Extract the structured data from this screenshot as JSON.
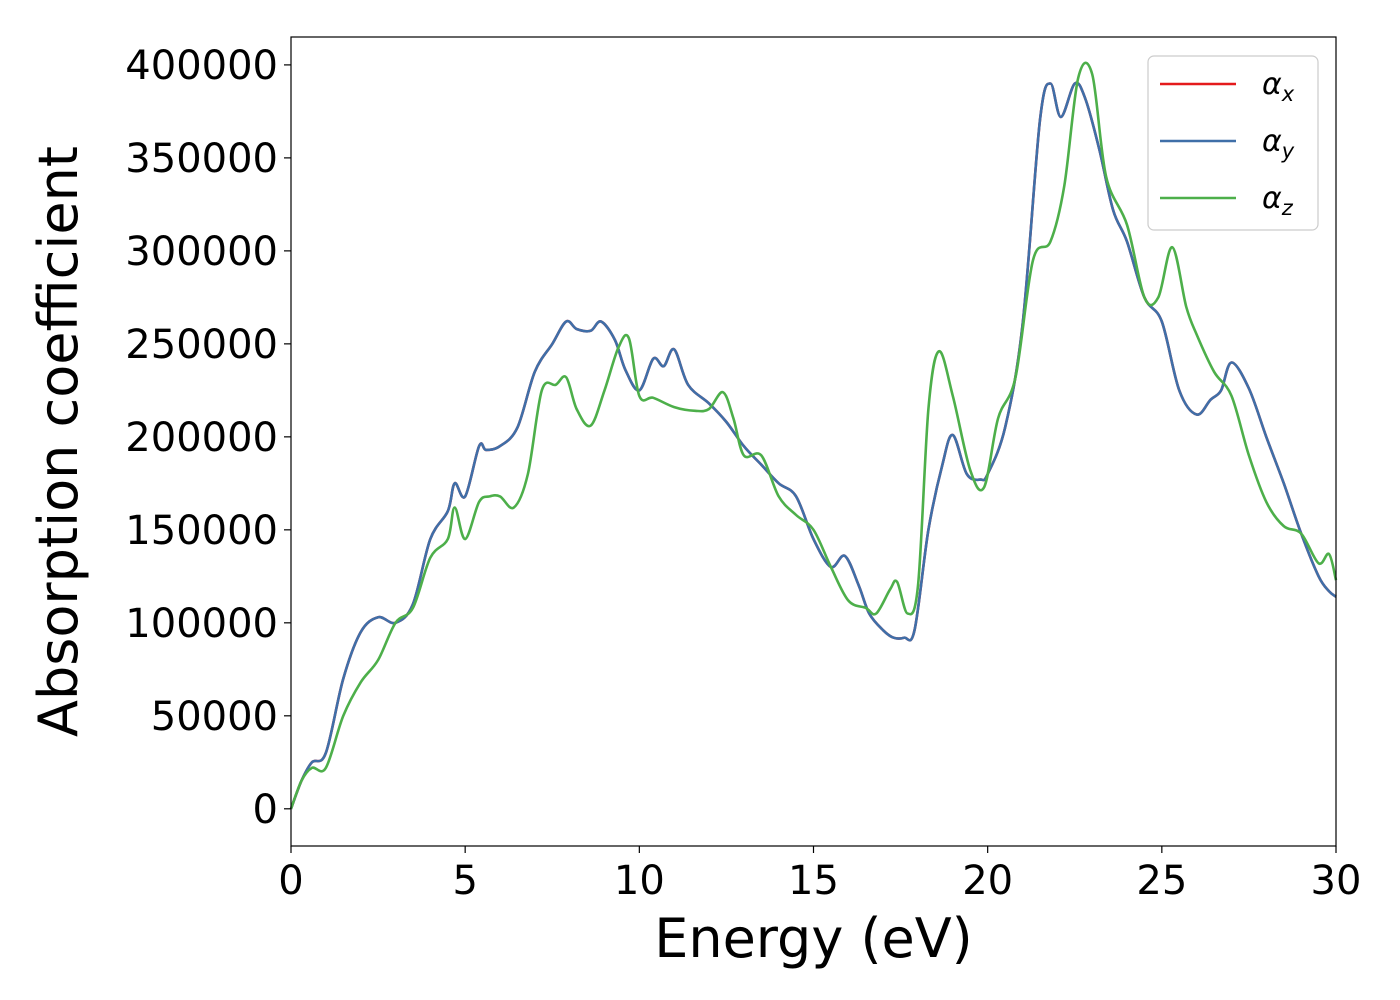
{
  "chart_data": {
    "type": "line",
    "title": "",
    "xlabel": "Energy (eV)",
    "ylabel": "Absorption coefficient",
    "xlim": [
      0,
      30
    ],
    "ylim": [
      -20000,
      415000
    ],
    "xticks": [
      0,
      5,
      10,
      15,
      20,
      25,
      30
    ],
    "yticks": [
      0,
      50000,
      100000,
      150000,
      200000,
      250000,
      300000,
      350000,
      400000
    ],
    "grid": false,
    "legend_position": "top-right",
    "series": [
      {
        "name": "αx",
        "symbol": "α",
        "subscript": "x",
        "color": "#e41a1c",
        "x": [
          0,
          0.3,
          0.6,
          1.0,
          1.5,
          2.0,
          2.5,
          3.0,
          3.5,
          4.0,
          4.5,
          4.7,
          5.0,
          5.4,
          5.6,
          6.0,
          6.5,
          7.0,
          7.5,
          7.9,
          8.2,
          8.6,
          8.9,
          9.3,
          9.6,
          10.0,
          10.4,
          10.7,
          11.0,
          11.4,
          12.0,
          12.5,
          13.0,
          13.5,
          14.0,
          14.5,
          15.0,
          15.5,
          15.9,
          16.3,
          16.6,
          17.0,
          17.3,
          17.6,
          17.9,
          18.3,
          18.7,
          19.0,
          19.4,
          19.8,
          20.0,
          20.5,
          21.0,
          21.5,
          21.8,
          22.1,
          22.5,
          22.8,
          23.2,
          23.6,
          24.0,
          24.5,
          25.0,
          25.5,
          26.0,
          26.4,
          26.7,
          27.0,
          27.5,
          28.0,
          28.5,
          29.0,
          29.5,
          29.8,
          30.0
        ],
        "values": [
          0,
          15000,
          25000,
          30000,
          70000,
          95000,
          103000,
          100000,
          110000,
          145000,
          160000,
          175000,
          168000,
          195000,
          193000,
          195000,
          205000,
          235000,
          250000,
          262000,
          258000,
          257000,
          262000,
          252000,
          236000,
          225000,
          242000,
          238000,
          247000,
          228000,
          218000,
          208000,
          195000,
          185000,
          175000,
          168000,
          145000,
          130000,
          136000,
          120000,
          105000,
          96000,
          92000,
          92000,
          96000,
          150000,
          185000,
          201000,
          180000,
          177000,
          180000,
          205000,
          260000,
          370000,
          390000,
          372000,
          390000,
          382000,
          355000,
          322000,
          305000,
          275000,
          262000,
          225000,
          212000,
          220000,
          225000,
          240000,
          226000,
          200000,
          175000,
          148000,
          125000,
          117000,
          114000
        ]
      },
      {
        "name": "αy",
        "symbol": "α",
        "subscript": "y",
        "color": "#3f6fa8",
        "x": [
          0,
          0.3,
          0.6,
          1.0,
          1.5,
          2.0,
          2.5,
          3.0,
          3.5,
          4.0,
          4.5,
          4.7,
          5.0,
          5.4,
          5.6,
          6.0,
          6.5,
          7.0,
          7.5,
          7.9,
          8.2,
          8.6,
          8.9,
          9.3,
          9.6,
          10.0,
          10.4,
          10.7,
          11.0,
          11.4,
          12.0,
          12.5,
          13.0,
          13.5,
          14.0,
          14.5,
          15.0,
          15.5,
          15.9,
          16.3,
          16.6,
          17.0,
          17.3,
          17.6,
          17.9,
          18.3,
          18.7,
          19.0,
          19.4,
          19.8,
          20.0,
          20.5,
          21.0,
          21.5,
          21.8,
          22.1,
          22.5,
          22.8,
          23.2,
          23.6,
          24.0,
          24.5,
          25.0,
          25.5,
          26.0,
          26.4,
          26.7,
          27.0,
          27.5,
          28.0,
          28.5,
          29.0,
          29.5,
          29.8,
          30.0
        ],
        "values": [
          0,
          15000,
          25000,
          30000,
          70000,
          95000,
          103000,
          100000,
          110000,
          145000,
          160000,
          175000,
          168000,
          195000,
          193000,
          195000,
          205000,
          235000,
          250000,
          262000,
          258000,
          257000,
          262000,
          252000,
          236000,
          225000,
          242000,
          238000,
          247000,
          228000,
          218000,
          208000,
          195000,
          185000,
          175000,
          168000,
          145000,
          130000,
          136000,
          120000,
          105000,
          96000,
          92000,
          92000,
          96000,
          150000,
          185000,
          201000,
          180000,
          177000,
          180000,
          205000,
          260000,
          370000,
          390000,
          372000,
          390000,
          382000,
          355000,
          322000,
          305000,
          275000,
          262000,
          225000,
          212000,
          220000,
          225000,
          240000,
          226000,
          200000,
          175000,
          148000,
          125000,
          117000,
          114000
        ]
      },
      {
        "name": "αz",
        "symbol": "α",
        "subscript": "z",
        "color": "#4daf4a",
        "x": [
          0,
          0.3,
          0.6,
          1.0,
          1.5,
          2.0,
          2.5,
          3.0,
          3.5,
          4.0,
          4.5,
          4.7,
          5.0,
          5.4,
          5.7,
          6.0,
          6.4,
          6.8,
          7.2,
          7.6,
          7.9,
          8.2,
          8.6,
          9.0,
          9.4,
          9.7,
          10.0,
          10.4,
          11.0,
          11.6,
          12.0,
          12.4,
          12.7,
          13.0,
          13.5,
          14.0,
          14.5,
          15.0,
          15.5,
          16.0,
          16.5,
          16.8,
          17.2,
          17.4,
          17.7,
          18.0,
          18.3,
          18.6,
          19.0,
          19.5,
          19.9,
          20.3,
          20.8,
          21.3,
          21.8,
          22.2,
          22.6,
          23.0,
          23.4,
          24.0,
          24.5,
          24.9,
          25.3,
          25.7,
          26.0,
          26.5,
          27.0,
          27.5,
          28.0,
          28.5,
          29.0,
          29.5,
          29.8,
          30.0
        ],
        "values": [
          0,
          15000,
          22000,
          22000,
          50000,
          68000,
          80000,
          100000,
          108000,
          135000,
          145000,
          162000,
          145000,
          165000,
          168000,
          168000,
          162000,
          180000,
          225000,
          228000,
          232000,
          215000,
          206000,
          225000,
          248000,
          253000,
          222000,
          221000,
          216000,
          214000,
          215000,
          224000,
          210000,
          190000,
          190000,
          168000,
          158000,
          150000,
          130000,
          112000,
          108000,
          105000,
          118000,
          122000,
          105000,
          120000,
          215000,
          246000,
          222000,
          182000,
          173000,
          210000,
          232000,
          295000,
          305000,
          335000,
          393000,
          395000,
          340000,
          314000,
          275000,
          275000,
          302000,
          270000,
          255000,
          235000,
          222000,
          190000,
          165000,
          152000,
          148000,
          132000,
          137000,
          123000
        ]
      }
    ]
  }
}
